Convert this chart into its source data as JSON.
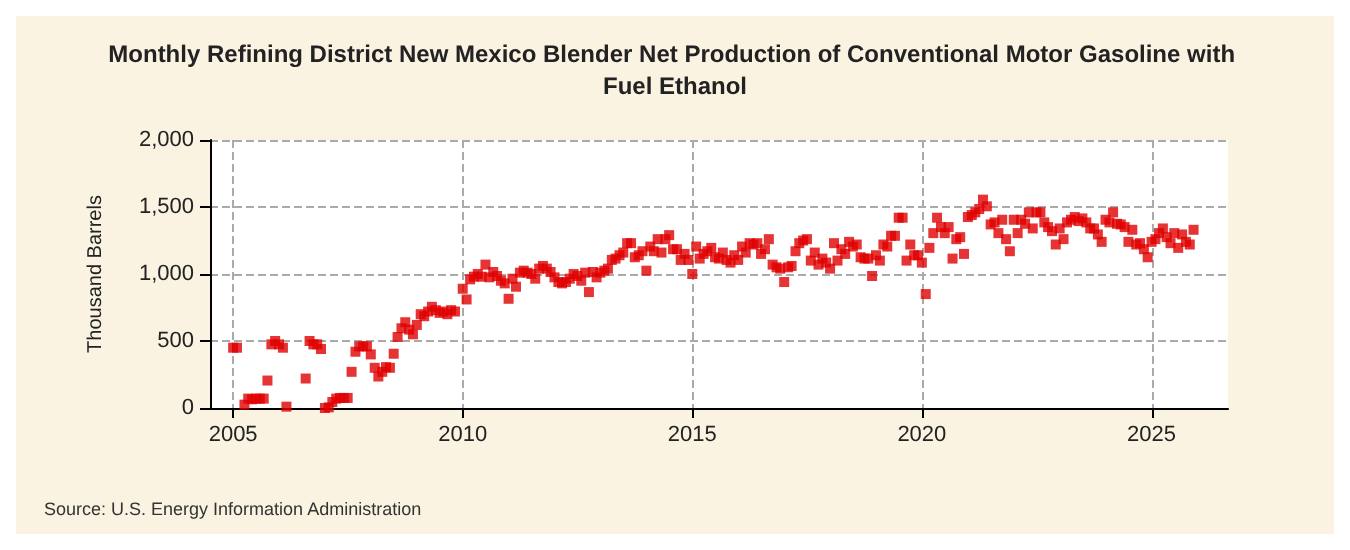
{
  "chart_data": {
    "type": "scatter",
    "title": "Monthly Refining District New Mexico Blender Net Production of Conventional Motor Gasoline with Fuel Ethanol",
    "ylabel": "Thousand Barrels",
    "annotations": [
      "Source: U.S. Energy Information Administration"
    ],
    "xlim": [
      "2004-07",
      "2026-09"
    ],
    "xticks": [
      {
        "value": "2005",
        "label": "2005"
      },
      {
        "value": "2010",
        "label": "2010"
      },
      {
        "value": "2015",
        "label": "2015"
      },
      {
        "value": "2020",
        "label": "2020"
      },
      {
        "value": "2025",
        "label": "2025"
      }
    ],
    "ylim": [
      0,
      2000
    ],
    "yticks": [
      0,
      {
        "value": 500,
        "label": "500"
      },
      {
        "value": 1000,
        "label": "1,000"
      },
      {
        "value": 1500,
        "label": "1,500"
      },
      {
        "value": 2000,
        "label": "2,000"
      }
    ],
    "grid": true,
    "marker": "square",
    "series": [
      {
        "color": "#e00000",
        "x": [
          "2005-01",
          "2005-02",
          "2005-04",
          "2005-05",
          "2005-06",
          "2005-07",
          "2005-08",
          "2005-09",
          "2005-10",
          "2005-11",
          "2005-12",
          "2006-01",
          "2006-02",
          "2006-03",
          "2006-08",
          "2006-09",
          "2006-10",
          "2006-11",
          "2006-12",
          "2007-01",
          "2007-02",
          "2007-03",
          "2007-04",
          "2007-05",
          "2007-06",
          "2007-07",
          "2007-08",
          "2007-09",
          "2007-10",
          "2007-11",
          "2007-12",
          "2008-01",
          "2008-02",
          "2008-03",
          "2008-04",
          "2008-05",
          "2008-06",
          "2008-07",
          "2008-08",
          "2008-09",
          "2008-10",
          "2008-11",
          "2008-12",
          "2009-01",
          "2009-02",
          "2009-03",
          "2009-04",
          "2009-05",
          "2009-06",
          "2009-07",
          "2009-08",
          "2009-09",
          "2009-10",
          "2009-11",
          "2010-01",
          "2010-02",
          "2010-03",
          "2010-04",
          "2010-05",
          "2010-06",
          "2010-07",
          "2010-08",
          "2010-09",
          "2010-10",
          "2010-11",
          "2010-12",
          "2011-01",
          "2011-02",
          "2011-03",
          "2011-04",
          "2011-05",
          "2011-06",
          "2011-07",
          "2011-08",
          "2011-09",
          "2011-10",
          "2011-11",
          "2011-12",
          "2012-01",
          "2012-02",
          "2012-03",
          "2012-04",
          "2012-05",
          "2012-06",
          "2012-07",
          "2012-08",
          "2012-09",
          "2012-10",
          "2012-11",
          "2012-12",
          "2013-01",
          "2013-02",
          "2013-03",
          "2013-04",
          "2013-05",
          "2013-06",
          "2013-07",
          "2013-08",
          "2013-09",
          "2013-10",
          "2013-11",
          "2013-12",
          "2014-01",
          "2014-02",
          "2014-03",
          "2014-04",
          "2014-05",
          "2014-06",
          "2014-07",
          "2014-08",
          "2014-09",
          "2014-10",
          "2014-11",
          "2014-12",
          "2015-01",
          "2015-02",
          "2015-03",
          "2015-04",
          "2015-05",
          "2015-06",
          "2015-07",
          "2015-08",
          "2015-09",
          "2015-10",
          "2015-11",
          "2015-12",
          "2016-01",
          "2016-02",
          "2016-03",
          "2016-04",
          "2016-05",
          "2016-06",
          "2016-07",
          "2016-08",
          "2016-09",
          "2016-10",
          "2016-11",
          "2016-12",
          "2017-01",
          "2017-02",
          "2017-03",
          "2017-04",
          "2017-05",
          "2017-06",
          "2017-07",
          "2017-08",
          "2017-09",
          "2017-10",
          "2017-11",
          "2017-12",
          "2018-01",
          "2018-02",
          "2018-03",
          "2018-04",
          "2018-05",
          "2018-06",
          "2018-07",
          "2018-08",
          "2018-09",
          "2018-10",
          "2018-11",
          "2018-12",
          "2019-01",
          "2019-02",
          "2019-03",
          "2019-04",
          "2019-05",
          "2019-06",
          "2019-07",
          "2019-08",
          "2019-09",
          "2019-10",
          "2019-11",
          "2019-12",
          "2020-01",
          "2020-02",
          "2020-03",
          "2020-04",
          "2020-05",
          "2020-06",
          "2020-07",
          "2020-08",
          "2020-09",
          "2020-10",
          "2020-11",
          "2020-12",
          "2021-01",
          "2021-02",
          "2021-03",
          "2021-04",
          "2021-05",
          "2021-06",
          "2021-07",
          "2021-08",
          "2021-09",
          "2021-10",
          "2021-11",
          "2021-12",
          "2022-01",
          "2022-02",
          "2022-03",
          "2022-04",
          "2022-05",
          "2022-06",
          "2022-07",
          "2022-08",
          "2022-09",
          "2022-10",
          "2022-11",
          "2022-12",
          "2023-01",
          "2023-02",
          "2023-03",
          "2023-04",
          "2023-05",
          "2023-06",
          "2023-07",
          "2023-08",
          "2023-09",
          "2023-10",
          "2023-11",
          "2023-12",
          "2024-01",
          "2024-02",
          "2024-03",
          "2024-04",
          "2024-05",
          "2024-06",
          "2024-07",
          "2024-08",
          "2024-09",
          "2024-10",
          "2024-11",
          "2024-12",
          "2025-01",
          "2025-02",
          "2025-03",
          "2025-04",
          "2025-05",
          "2025-06",
          "2025-07",
          "2025-08",
          "2025-09",
          "2025-10",
          "2025-11",
          "2025-12"
        ],
        "values": [
          450,
          450,
          25,
          70,
          65,
          70,
          70,
          70,
          205,
          475,
          500,
          475,
          450,
          10,
          220,
          500,
          475,
          475,
          440,
          0,
          5,
          45,
          70,
          75,
          75,
          75,
          270,
          420,
          460,
          460,
          460,
          400,
          300,
          235,
          270,
          305,
          300,
          405,
          530,
          595,
          640,
          585,
          550,
          620,
          700,
          685,
          720,
          755,
          730,
          710,
          720,
          700,
          730,
          720,
          890,
          810,
          960,
          980,
          1000,
          980,
          1070,
          975,
          1015,
          985,
          950,
          930,
          815,
          965,
          905,
          1010,
          1025,
          1010,
          1000,
          965,
          1040,
          1060,
          1040,
          1015,
          975,
          940,
          930,
          940,
          965,
          1000,
          985,
          950,
          1010,
          865,
          1015,
          975,
          1010,
          1025,
          1040,
          1105,
          1115,
          1140,
          1160,
          1230,
          1230,
          1125,
          1140,
          1170,
          1025,
          1205,
          1170,
          1260,
          1160,
          1260,
          1290,
          1185,
          1185,
          1105,
          1150,
          1105,
          1000,
          1205,
          1115,
          1150,
          1170,
          1195,
          1125,
          1115,
          1160,
          1105,
          1085,
          1140,
          1105,
          1205,
          1160,
          1230,
          1220,
          1230,
          1150,
          1185,
          1260,
          1070,
          1050,
          1040,
          940,
          1050,
          1060,
          1170,
          1230,
          1250,
          1260,
          1100,
          1160,
          1070,
          1115,
          1085,
          1040,
          1230,
          1100,
          1185,
          1150,
          1240,
          1205,
          1220,
          1125,
          1115,
          1115,
          985,
          1140,
          1100,
          1220,
          1205,
          1285,
          1285,
          1420,
          1420,
          1100,
          1220,
          1140,
          1140,
          1085,
          850,
          1195,
          1305,
          1420,
          1350,
          1305,
          1350,
          1115,
          1260,
          1275,
          1150,
          1425,
          1440,
          1460,
          1485,
          1555,
          1505,
          1370,
          1385,
          1305,
          1405,
          1260,
          1170,
          1405,
          1305,
          1405,
          1375,
          1460,
          1340,
          1460,
          1460,
          1385,
          1350,
          1320,
          1220,
          1340,
          1260,
          1385,
          1405,
          1425,
          1395,
          1415,
          1385,
          1340,
          1340,
          1295,
          1240,
          1405,
          1385,
          1460,
          1375,
          1370,
          1350,
          1240,
          1330,
          1220,
          1230,
          1185,
          1125,
          1240,
          1260,
          1305,
          1340,
          1275,
          1230,
          1305,
          1195,
          1295,
          1240,
          1220,
          1330
        ]
      }
    ]
  }
}
